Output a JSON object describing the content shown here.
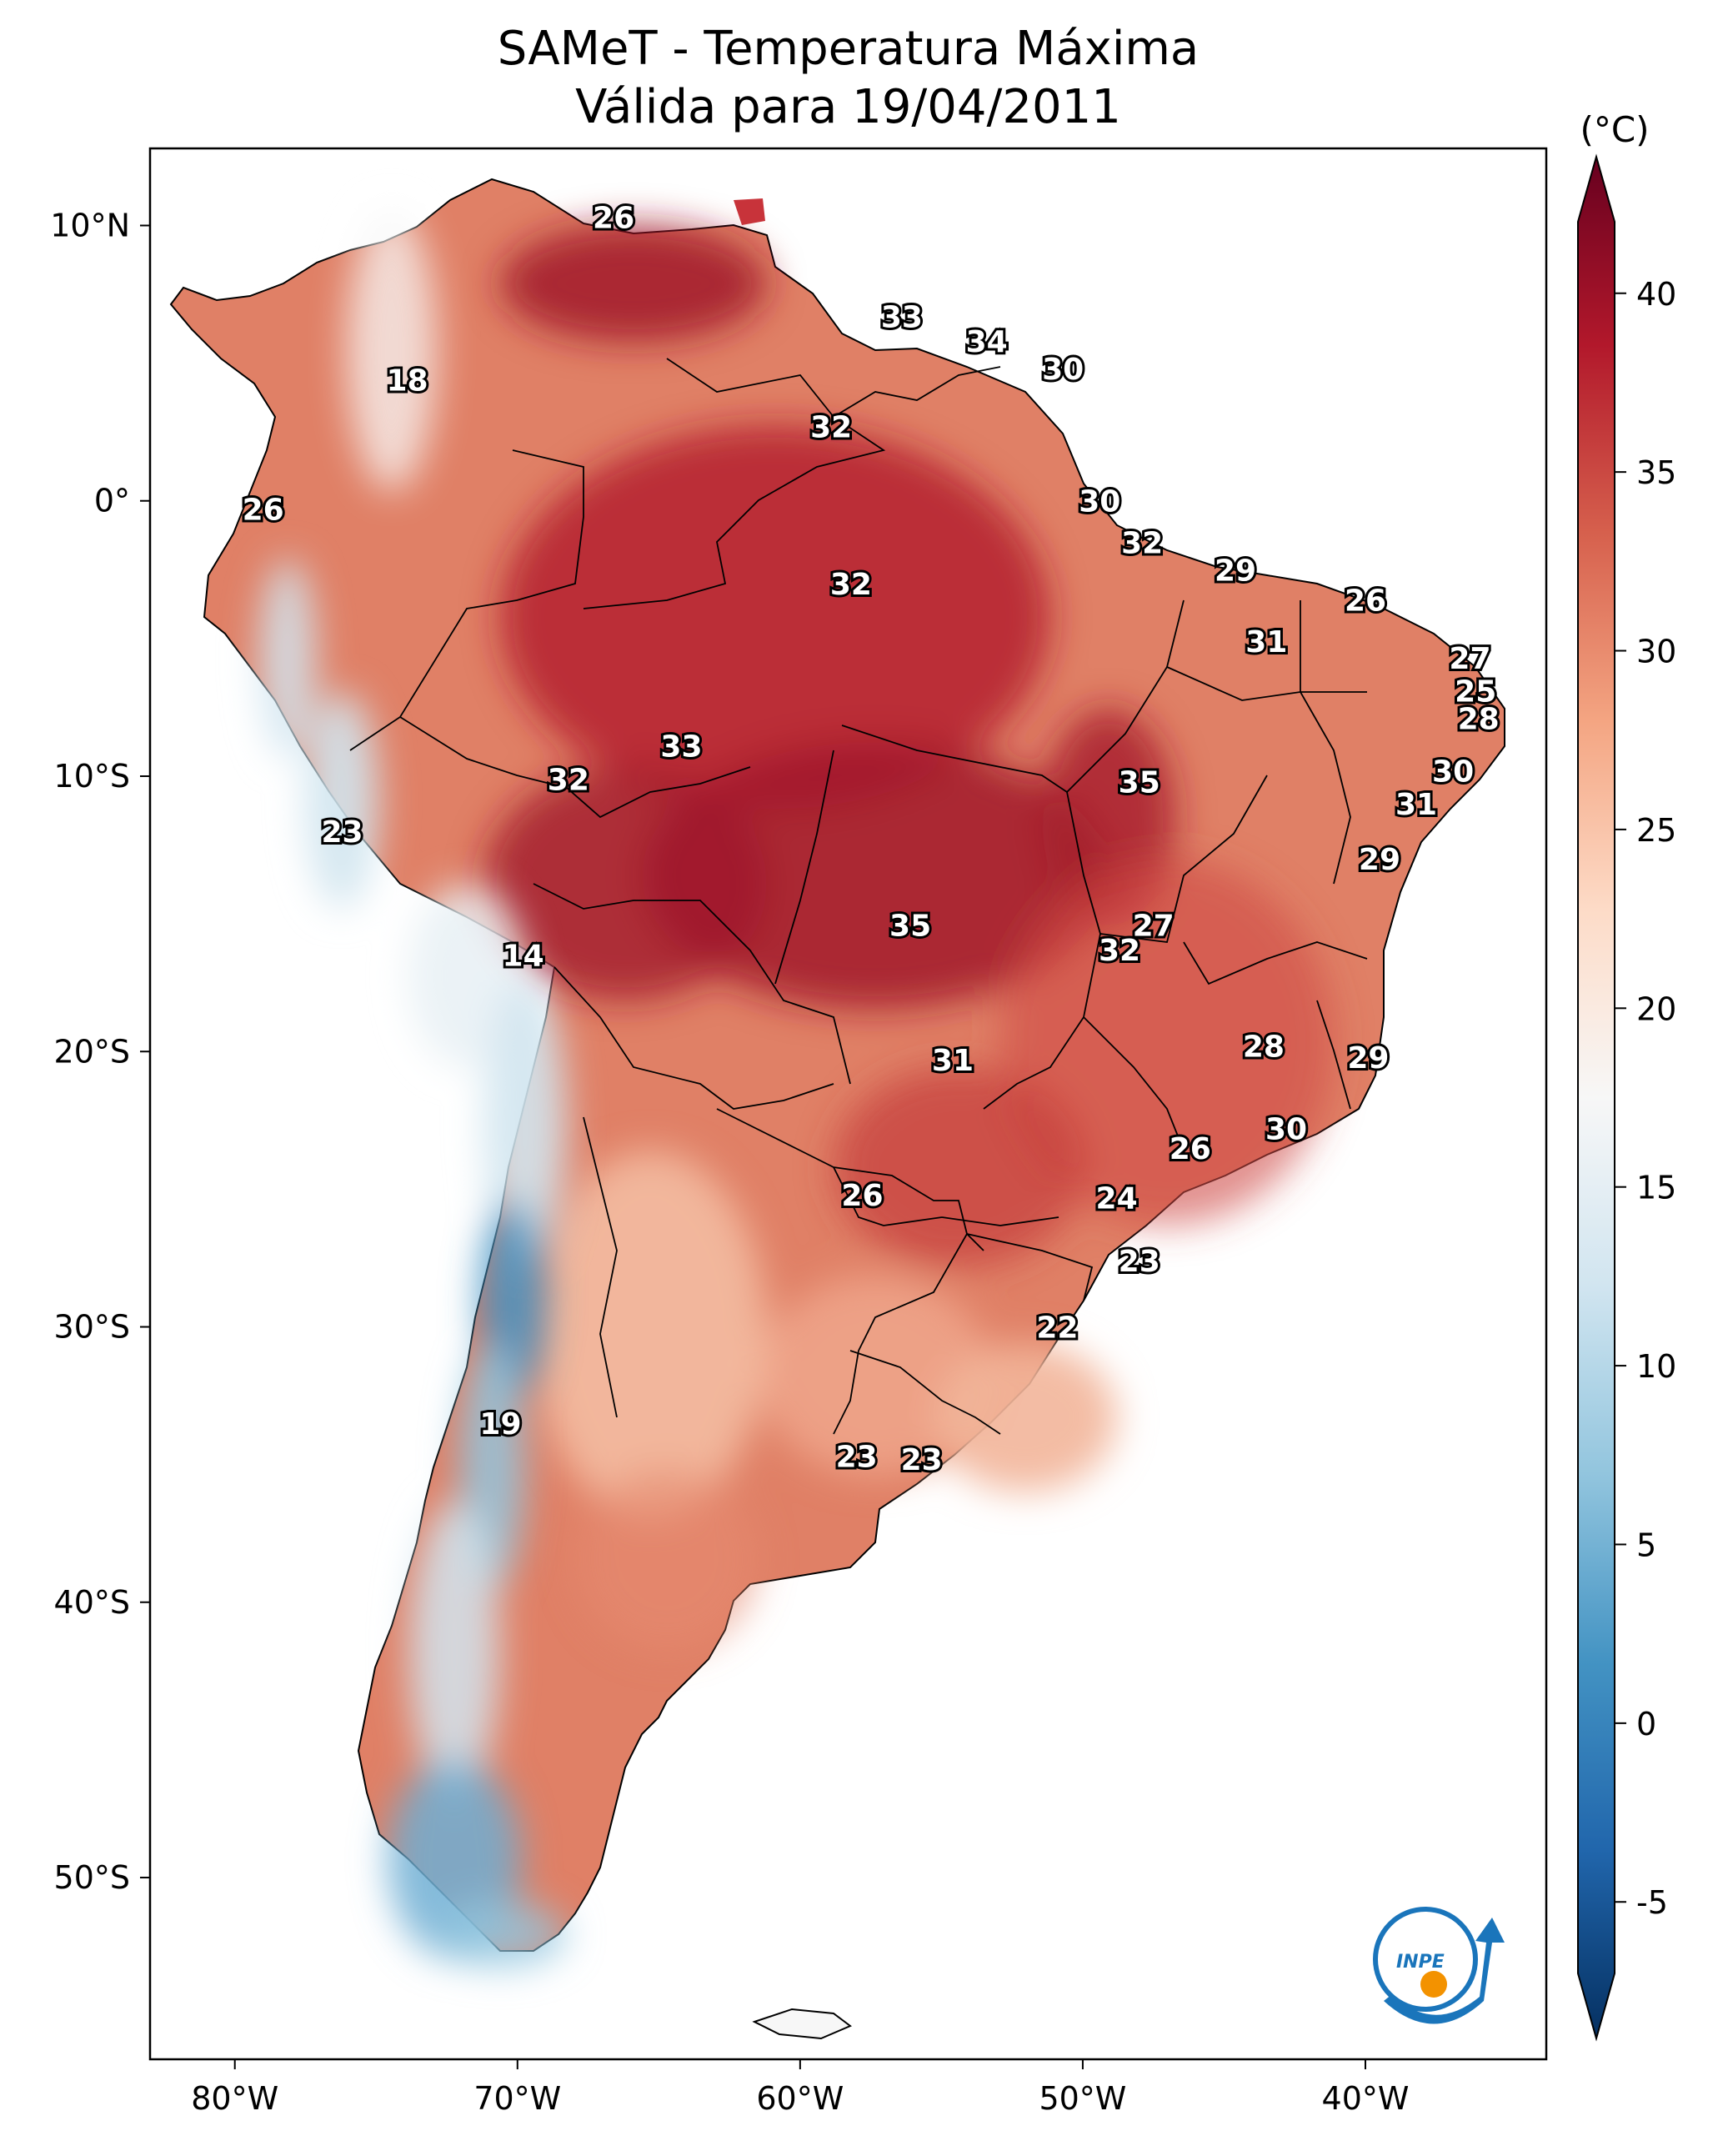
{
  "title": {
    "line1": "SAMeT - Temperatura Máxima",
    "line2": "Válida para 19/04/2011"
  },
  "map": {
    "lon_range": [
      -83,
      -33.6
    ],
    "lat_range": [
      -56.6,
      12.8
    ],
    "lon_ticks": [
      {
        "value": -80,
        "label": "80°W"
      },
      {
        "value": -70,
        "label": "70°W"
      },
      {
        "value": -60,
        "label": "60°W"
      },
      {
        "value": -50,
        "label": "50°W"
      },
      {
        "value": -40,
        "label": "40°W"
      }
    ],
    "lat_ticks": [
      {
        "value": 10,
        "label": "10°N"
      },
      {
        "value": 0,
        "label": "0°"
      },
      {
        "value": -10,
        "label": "10°S"
      },
      {
        "value": -20,
        "label": "20°S"
      },
      {
        "value": -30,
        "label": "30°S"
      },
      {
        "value": -40,
        "label": "40°S"
      },
      {
        "value": -50,
        "label": "50°S"
      }
    ],
    "point_labels": [
      {
        "lon": -66.6,
        "lat": 10.3,
        "text": "26"
      },
      {
        "lon": -56.4,
        "lat": 6.7,
        "text": "33"
      },
      {
        "lon": -53.4,
        "lat": 5.8,
        "text": "34"
      },
      {
        "lon": -50.7,
        "lat": 4.8,
        "text": "30"
      },
      {
        "lon": -73.9,
        "lat": 4.4,
        "text": "18"
      },
      {
        "lon": -58.9,
        "lat": 2.7,
        "text": "32"
      },
      {
        "lon": -49.4,
        "lat": -0.0,
        "text": "30"
      },
      {
        "lon": -79.0,
        "lat": -0.3,
        "text": "26"
      },
      {
        "lon": -47.9,
        "lat": -1.5,
        "text": "32"
      },
      {
        "lon": -44.6,
        "lat": -2.5,
        "text": "29"
      },
      {
        "lon": -58.2,
        "lat": -3.0,
        "text": "32"
      },
      {
        "lon": -40.0,
        "lat": -3.6,
        "text": "26"
      },
      {
        "lon": -43.5,
        "lat": -5.1,
        "text": "31"
      },
      {
        "lon": -36.3,
        "lat": -5.7,
        "text": "27"
      },
      {
        "lon": -36.1,
        "lat": -6.9,
        "text": "25"
      },
      {
        "lon": -36.0,
        "lat": -7.9,
        "text": "28"
      },
      {
        "lon": -64.2,
        "lat": -8.9,
        "text": "33"
      },
      {
        "lon": -36.9,
        "lat": -9.8,
        "text": "30"
      },
      {
        "lon": -68.2,
        "lat": -10.1,
        "text": "32"
      },
      {
        "lon": -48.0,
        "lat": -10.2,
        "text": "35"
      },
      {
        "lon": -38.2,
        "lat": -11.0,
        "text": "31"
      },
      {
        "lon": -76.2,
        "lat": -12.0,
        "text": "23"
      },
      {
        "lon": -39.5,
        "lat": -13.0,
        "text": "29"
      },
      {
        "lon": -47.5,
        "lat": -15.4,
        "text": "27"
      },
      {
        "lon": -56.1,
        "lat": -15.4,
        "text": "35"
      },
      {
        "lon": -48.7,
        "lat": -16.3,
        "text": "32"
      },
      {
        "lon": -69.8,
        "lat": -16.5,
        "text": "14"
      },
      {
        "lon": -43.6,
        "lat": -19.8,
        "text": "28"
      },
      {
        "lon": -39.9,
        "lat": -20.2,
        "text": "29"
      },
      {
        "lon": -54.6,
        "lat": -20.3,
        "text": "31"
      },
      {
        "lon": -42.8,
        "lat": -22.8,
        "text": "30"
      },
      {
        "lon": -46.2,
        "lat": -23.5,
        "text": "26"
      },
      {
        "lon": -57.8,
        "lat": -25.2,
        "text": "26"
      },
      {
        "lon": -48.8,
        "lat": -25.3,
        "text": "24"
      },
      {
        "lon": -48.0,
        "lat": -27.6,
        "text": "23"
      },
      {
        "lon": -50.9,
        "lat": -30.0,
        "text": "22"
      },
      {
        "lon": -70.6,
        "lat": -33.5,
        "text": "19"
      },
      {
        "lon": -58.0,
        "lat": -34.7,
        "text": "23"
      },
      {
        "lon": -55.7,
        "lat": -34.8,
        "text": "23"
      }
    ]
  },
  "colorbar": {
    "unit": "(°C)",
    "min": -7,
    "max": 42,
    "ticks": [
      {
        "value": 40,
        "label": "40"
      },
      {
        "value": 35,
        "label": "35"
      },
      {
        "value": 30,
        "label": "30"
      },
      {
        "value": 25,
        "label": "25"
      },
      {
        "value": 20,
        "label": "20"
      },
      {
        "value": 15,
        "label": "15"
      },
      {
        "value": 10,
        "label": "10"
      },
      {
        "value": 5,
        "label": "5"
      },
      {
        "value": 0,
        "label": "0"
      },
      {
        "value": -5,
        "label": "-5"
      }
    ],
    "colors": [
      "#053061",
      "#2166ac",
      "#4393c3",
      "#92c5de",
      "#d1e5f0",
      "#f7f7f7",
      "#fddbc7",
      "#f4a582",
      "#d6604d",
      "#b2182b",
      "#67001f"
    ]
  },
  "logo": {
    "text": "INPE",
    "colors": {
      "blue": "#1a75bb",
      "orange": "#f39200"
    }
  }
}
